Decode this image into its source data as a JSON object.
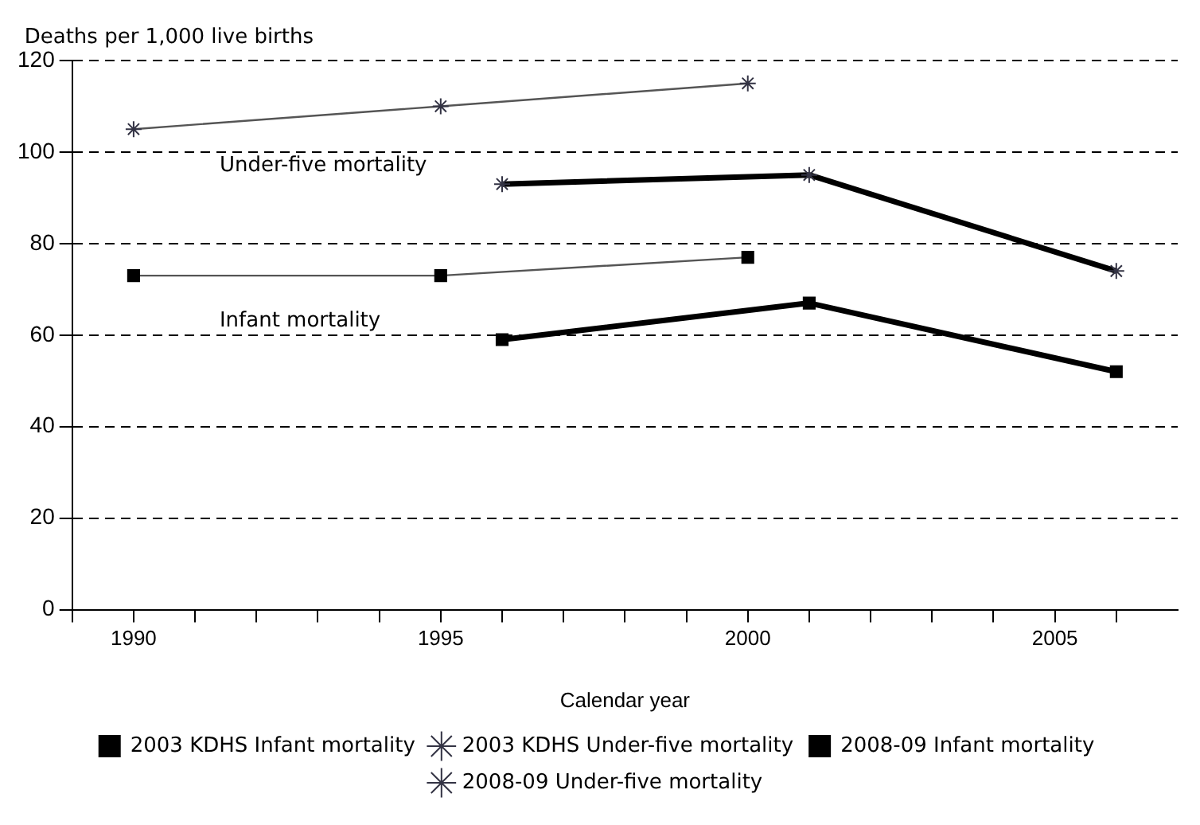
{
  "chart_data": {
    "type": "line",
    "xlabel": "Calendar year",
    "ylabel": "Deaths per 1,000 live births",
    "annotations": [
      "Under-five mortality",
      "Infant mortality"
    ],
    "xlim": [
      1989,
      2007
    ],
    "xticks": [
      {
        "value": 1989,
        "label": null
      },
      1990,
      {
        "value": 1991,
        "label": null
      },
      {
        "value": 1992,
        "label": null
      },
      {
        "value": 1993,
        "label": null
      },
      {
        "value": 1994,
        "label": null
      },
      1995,
      {
        "value": 1996,
        "label": null
      },
      {
        "value": 1997,
        "label": null
      },
      {
        "value": 1998,
        "label": null
      },
      {
        "value": 1999,
        "label": null
      },
      2000,
      {
        "value": 2001,
        "label": null
      },
      {
        "value": 2002,
        "label": null
      },
      {
        "value": 2003,
        "label": null
      },
      {
        "value": 2004,
        "label": null
      },
      2005,
      {
        "value": 2006,
        "label": null
      }
    ],
    "ylim": [
      0,
      120
    ],
    "yticks": [
      0,
      20,
      40,
      60,
      80,
      100,
      120
    ],
    "grid": "y",
    "legend": "bottom",
    "line_style": "solid",
    "series": [
      {
        "name": "2003 KDHS Infant mortality",
        "color": "#555555",
        "marker": "square",
        "x": [
          1990,
          1995,
          2000
        ],
        "values": [
          73,
          73,
          77
        ]
      },
      {
        "name": "2003 KDHS Under-five mortality",
        "color": "#555555",
        "marker": "cross",
        "x": [
          1990,
          1995,
          2000
        ],
        "values": [
          105,
          110,
          115
        ]
      },
      {
        "name": "2008-09 Infant mortality",
        "color": "#000000",
        "marker": "square",
        "x": [
          1996,
          2001,
          2006
        ],
        "values": [
          59,
          67,
          52
        ]
      },
      {
        "name": "2008-09 Under-five mortality",
        "color": "#000000",
        "marker": "cross",
        "x": [
          1996,
          2001,
          2006
        ],
        "values": [
          93,
          95,
          74
        ]
      }
    ]
  }
}
